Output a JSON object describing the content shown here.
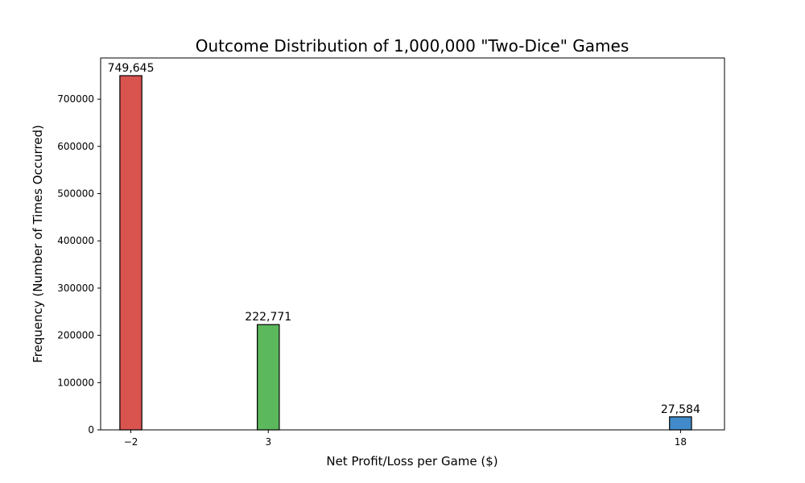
{
  "chart_data": {
    "type": "bar",
    "title": "Outcome Distribution of 1,000,000 \"Two-Dice\" Games",
    "xlabel": "Net Profit/Loss per Game ($)",
    "ylabel": "Frequency (Number of Times Occurred)",
    "x": [
      -2,
      3,
      18
    ],
    "x_tick_labels": [
      "−2",
      "3",
      "18"
    ],
    "values": [
      749645,
      222771,
      27584
    ],
    "data_labels": [
      "749,645",
      "222,771",
      "27,584"
    ],
    "colors": [
      "#d9534f",
      "#5cb85c",
      "#428bca"
    ],
    "xlim": [
      -3.1,
      19.6
    ],
    "ylim": [
      0,
      787127
    ],
    "yticks": [
      0,
      100000,
      200000,
      300000,
      400000,
      500000,
      600000,
      700000
    ],
    "ytick_labels": [
      "0",
      "100000",
      "200000",
      "300000",
      "400000",
      "500000",
      "600000",
      "700000"
    ],
    "bar_width": 0.8,
    "grid": false,
    "legend": "none"
  }
}
